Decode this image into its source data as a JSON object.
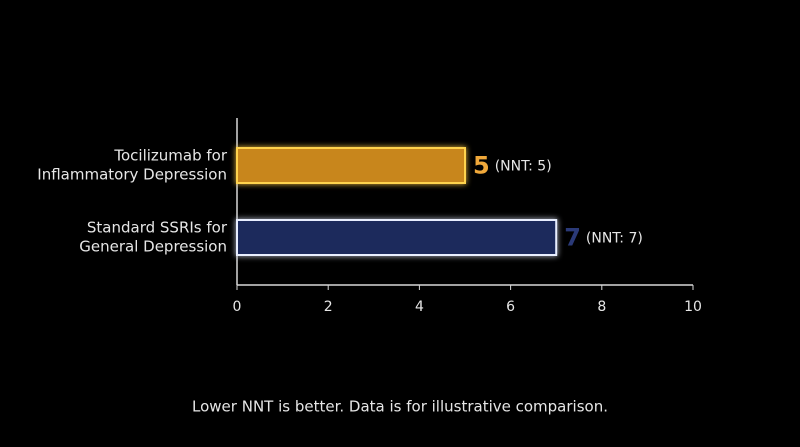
{
  "chart_data": {
    "type": "barh",
    "categories": [
      [
        "Tocilizumab for",
        "Inflammatory Depression"
      ],
      [
        "Standard SSRIs for",
        "General Depression"
      ]
    ],
    "values": [
      5,
      7
    ],
    "annotations": [
      "(NNT: 5)",
      "(NNT: 7)"
    ],
    "colors": [
      "#c8861f",
      "#1b2a5c"
    ],
    "edge_colors": [
      "#ffd34d",
      "#e8eeff"
    ],
    "label_colors": [
      "#f0a83a",
      "#2b3a78"
    ],
    "xlim": [
      0,
      10
    ],
    "xticks": [
      0,
      2,
      4,
      6,
      8,
      10
    ],
    "note": "Lower NNT is better. Data is for illustrative comparison."
  }
}
